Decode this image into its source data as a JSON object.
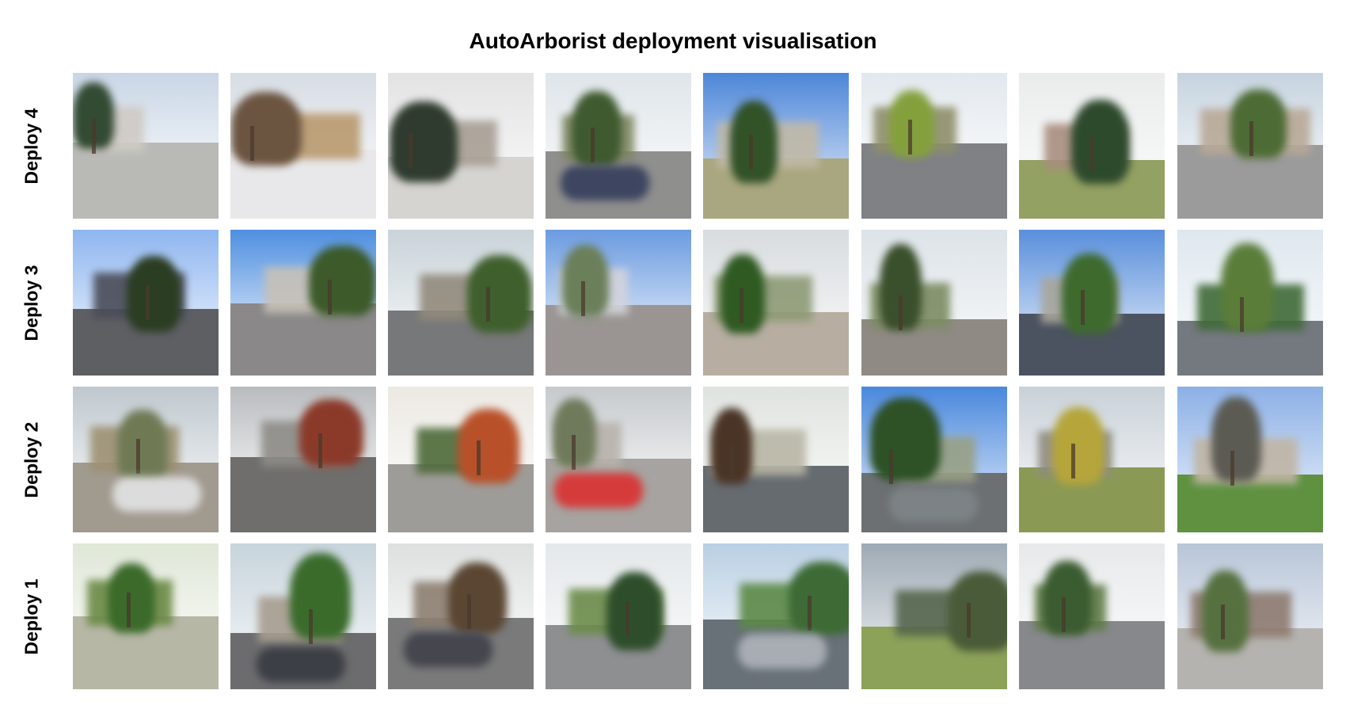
{
  "title": "AutoArborist deployment visualisation",
  "rows": [
    {
      "label": "Deploy 4",
      "tiles": [
        {
          "name": "conifer-driveway",
          "sky": "#c9d6e6",
          "ground": "#b9bab6",
          "wall": "#cfcac4",
          "tree": "#334a33",
          "car": ""
        },
        {
          "name": "snowy-fence",
          "sky": "#d7dde4",
          "ground": "#e8e8ea",
          "wall": "#b99a6f",
          "tree": "#6b5440",
          "car": ""
        },
        {
          "name": "snowy-lot",
          "sky": "#e3e3e4",
          "ground": "#d6d4d1",
          "wall": "#a89f95",
          "tree": "#2f3b2e",
          "car": ""
        },
        {
          "name": "tree-and-car",
          "sky": "#dfe5ea",
          "ground": "#8f8f8e",
          "wall": "#7e8762",
          "tree": "#3f5a2f",
          "car": "#3d4560"
        },
        {
          "name": "hedge-wall",
          "sky": "#4d86d8",
          "ground": "#a9a77f",
          "wall": "#c1b9a7",
          "tree": "#325228",
          "car": ""
        },
        {
          "name": "yellow-tree-street",
          "sky": "#e2e8ee",
          "ground": "#7f8185",
          "wall": "#8e8f6a",
          "tree": "#84a03c",
          "car": ""
        },
        {
          "name": "pines-lawn",
          "sky": "#eaecec",
          "ground": "#93a162",
          "wall": "#a88d7e",
          "tree": "#2e4a2d",
          "car": ""
        },
        {
          "name": "trimmed-shrubs",
          "sky": "#c6d3df",
          "ground": "#9a9b9a",
          "wall": "#b8a997",
          "tree": "#4d6b35",
          "car": ""
        }
      ]
    },
    {
      "label": "Deploy 3",
      "tiles": [
        {
          "name": "sunny-street",
          "sky": "#8fb6f0",
          "ground": "#5d5f63",
          "wall": "#4a4c58",
          "tree": "#2b3d22",
          "car": ""
        },
        {
          "name": "palms-wall",
          "sky": "#4e8fe0",
          "ground": "#8a8888",
          "wall": "#c7c1b7",
          "tree": "#3c5a2a",
          "car": ""
        },
        {
          "name": "flower-bush",
          "sky": "#c9d3d9",
          "ground": "#777879",
          "wall": "#928a7c",
          "tree": "#3f5f2c",
          "car": ""
        },
        {
          "name": "white-building",
          "sky": "#6b9be0",
          "ground": "#9a9592",
          "wall": "#d3d4dc",
          "tree": "#6b7f5a",
          "car": ""
        },
        {
          "name": "big-green-tree",
          "sky": "#d8dcdf",
          "ground": "#b7aea1",
          "wall": "#8d9a75",
          "tree": "#2f5a22",
          "car": ""
        },
        {
          "name": "palm-oak-street",
          "sky": "#dde3e8",
          "ground": "#8f8a84",
          "wall": "#7c8c62",
          "tree": "#3a4f2b",
          "car": ""
        },
        {
          "name": "roundabout-tree",
          "sky": "#5a8fdc",
          "ground": "#4b5260",
          "wall": "#a9a69b",
          "tree": "#3e6a2e",
          "car": ""
        },
        {
          "name": "powerlines-hedge",
          "sky": "#dfe8ef",
          "ground": "#74787f",
          "wall": "#3f6a37",
          "tree": "#5b7d3a",
          "car": ""
        }
      ]
    },
    {
      "label": "Deploy 2",
      "tiles": [
        {
          "name": "white-car-yard",
          "sky": "#bfc8cf",
          "ground": "#a19a8f",
          "wall": "#9d9173",
          "tree": "#6f7a55",
          "car": "#dcdcdc"
        },
        {
          "name": "red-leaf-tree",
          "sky": "#b9bcbf",
          "ground": "#6f6e6c",
          "wall": "#8e8c87",
          "tree": "#8b3a2a",
          "car": ""
        },
        {
          "name": "autumn-maple",
          "sky": "#ece9e3",
          "ground": "#9e9c98",
          "wall": "#4d6a3a",
          "tree": "#b8512a",
          "car": ""
        },
        {
          "name": "red-car-houses",
          "sky": "#c6cacd",
          "ground": "#a6a3a0",
          "wall": "#b7b2ab",
          "tree": "#6f7a5b",
          "car": "#d63b3b"
        },
        {
          "name": "redwood-shade",
          "sky": "#dfe3df",
          "ground": "#666b70",
          "wall": "#b9b6a5",
          "tree": "#4a3426",
          "car": ""
        },
        {
          "name": "tall-cypress",
          "sky": "#4a88dd",
          "ground": "#6c7073",
          "wall": "#98a084",
          "tree": "#2e5126",
          "car": "#7c8285"
        },
        {
          "name": "gingko-lawn",
          "sky": "#c9d1d8",
          "ground": "#8a9a55",
          "wall": "#8f8d7f",
          "tree": "#b5a53a",
          "car": ""
        },
        {
          "name": "bare-tree-cloud",
          "sky": "#8cb0e6",
          "ground": "#5f9141",
          "wall": "#c0b5a4",
          "tree": "#5c5b53",
          "car": ""
        }
      ]
    },
    {
      "label": "Deploy 1",
      "tiles": [
        {
          "name": "leafy-path",
          "sky": "#dfe7d7",
          "ground": "#b7b7a6",
          "wall": "#6b8a45",
          "tree": "#3b6a2a",
          "car": ""
        },
        {
          "name": "dark-car-house",
          "sky": "#c8d4dc",
          "ground": "#6c6c6e",
          "wall": "#a79d8f",
          "tree": "#3a6b2b",
          "car": "#3c3f45"
        },
        {
          "name": "tree-two-cars",
          "sky": "#dde0df",
          "ground": "#7a7a7b",
          "wall": "#8d7f71",
          "tree": "#5a4632",
          "car": "#45464e"
        },
        {
          "name": "evergreen-garden",
          "sky": "#e4e8ea",
          "ground": "#8d8f91",
          "wall": "#6c8b4a",
          "tree": "#2e4e2b",
          "car": ""
        },
        {
          "name": "silver-car-shrub",
          "sky": "#b9cfe3",
          "ground": "#687078",
          "wall": "#5c8a47",
          "tree": "#3d6a35",
          "car": "#a7adb2"
        },
        {
          "name": "field-street",
          "sky": "#9eaab4",
          "ground": "#8ca259",
          "wall": "#55664d",
          "tree": "#4a5b39",
          "car": ""
        },
        {
          "name": "tall-trees-road",
          "sky": "#e7e9ea",
          "ground": "#86888b",
          "wall": "#5d7a45",
          "tree": "#3b5c30",
          "car": ""
        },
        {
          "name": "brown-house-wires",
          "sky": "#b8c5d8",
          "ground": "#b5b3af",
          "wall": "#8e7b70",
          "tree": "#56713f",
          "car": ""
        }
      ]
    }
  ]
}
